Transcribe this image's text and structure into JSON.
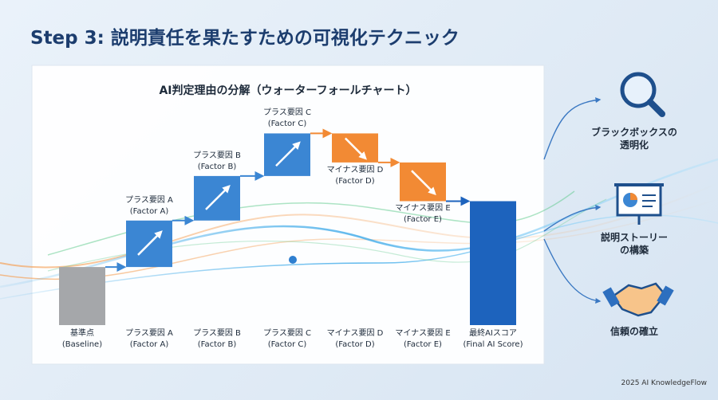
{
  "title": "Step 3: 説明責任を果たすための可視化テクニック",
  "chart_data": {
    "type": "waterfall",
    "title": "AI判定理由の分解（ウォーターフォールチャート）",
    "categories": [
      "基準点\n(Baseline)",
      "プラス要因 A\n(Factor A)",
      "プラス要因 B\n(Factor B)",
      "プラス要因 C\n(Factor C)",
      "マイナス要因 D\n(Factor D)",
      "マイナス要因 E\n(Factor E)",
      "最終AIスコア\n(Final AI Score)"
    ],
    "values": [
      30,
      24,
      23,
      22,
      -15,
      -20,
      64
    ],
    "measure": [
      "absolute",
      "relative",
      "relative",
      "relative",
      "relative",
      "relative",
      "total"
    ],
    "colors": {
      "absolute": "#a5a7aa",
      "increase": "#3b86d3",
      "decrease": "#f28a34",
      "total": "#1d63bd"
    },
    "ylim": [
      0,
      100
    ]
  },
  "benefits": [
    "ブラックボックスの\n透明化",
    "説明ストーリー\nの構築",
    "信頼の確立"
  ],
  "footer": "2025 AI KnowledgeFlow"
}
